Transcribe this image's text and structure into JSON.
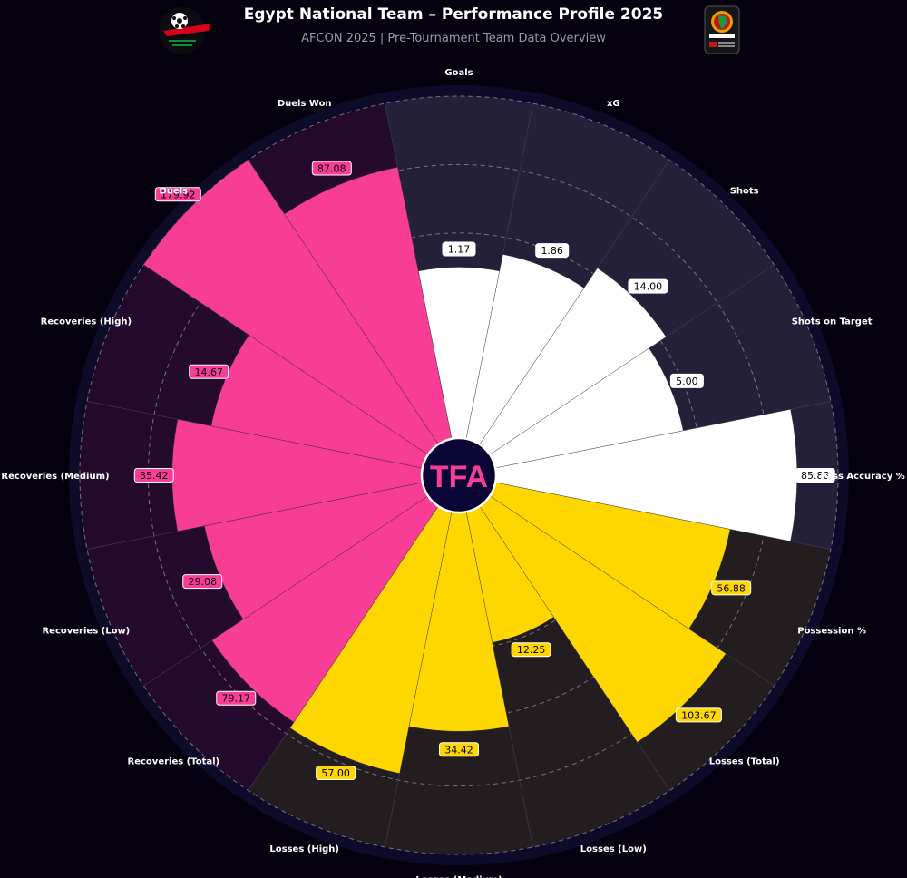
{
  "header": {
    "title": "Egypt National Team – Performance Profile 2025",
    "subtitle": "AFCON 2025 | Pre-Tournament Team Data Overview",
    "left_logo": "egypt-fa-logo",
    "right_logo": "caf-afcon-logo",
    "center_badge_text": "TFA"
  },
  "colors": {
    "background": "#05010f",
    "attack_bar": "#ffffff",
    "attack_sector": "#25203a",
    "possession_bar": "#ffd700",
    "possession_sector": "#241d1f",
    "defense_bar": "#f73d96",
    "defense_sector": "#240a2c",
    "badge_fill": "#0a0535",
    "badge_text": "#f73d96"
  },
  "chart_data": {
    "type": "polar-bar",
    "categories": [
      "Goals",
      "xG",
      "Shots",
      "Shots on Target",
      "Pass Accuracy %",
      "Possession %",
      "Losses (Total)",
      "Losses (Low)",
      "Losses (Medium)",
      "Losses (High)",
      "Recoveries (Total)",
      "Recoveries (Low)",
      "Recoveries (Medium)",
      "Recoveries (High)",
      "Duels",
      "Duels Won"
    ],
    "values": [
      1.17,
      1.86,
      14.0,
      5.0,
      85.88,
      56.88,
      103.67,
      12.25,
      34.42,
      57.0,
      79.17,
      29.08,
      35.42,
      14.67,
      179.92,
      87.08
    ],
    "value_labels": [
      "1.17",
      "1.86",
      "14.00",
      "5.00",
      "85.88",
      "56.88",
      "103.67",
      "12.25",
      "34.42",
      "57.00",
      "79.17",
      "29.08",
      "35.42",
      "14.67",
      "179.92",
      "87.08"
    ],
    "groups": [
      "attack",
      "attack",
      "attack",
      "attack",
      "attack",
      "possession",
      "possession",
      "possession",
      "possession",
      "possession",
      "defense",
      "defense",
      "defense",
      "defense",
      "defense",
      "defense"
    ],
    "percentile_ranks": [
      50,
      55,
      62,
      56,
      88,
      70,
      83,
      39,
      64,
      78,
      76,
      65,
      73,
      63,
      100,
      81
    ],
    "grid": true,
    "legend": "none"
  }
}
